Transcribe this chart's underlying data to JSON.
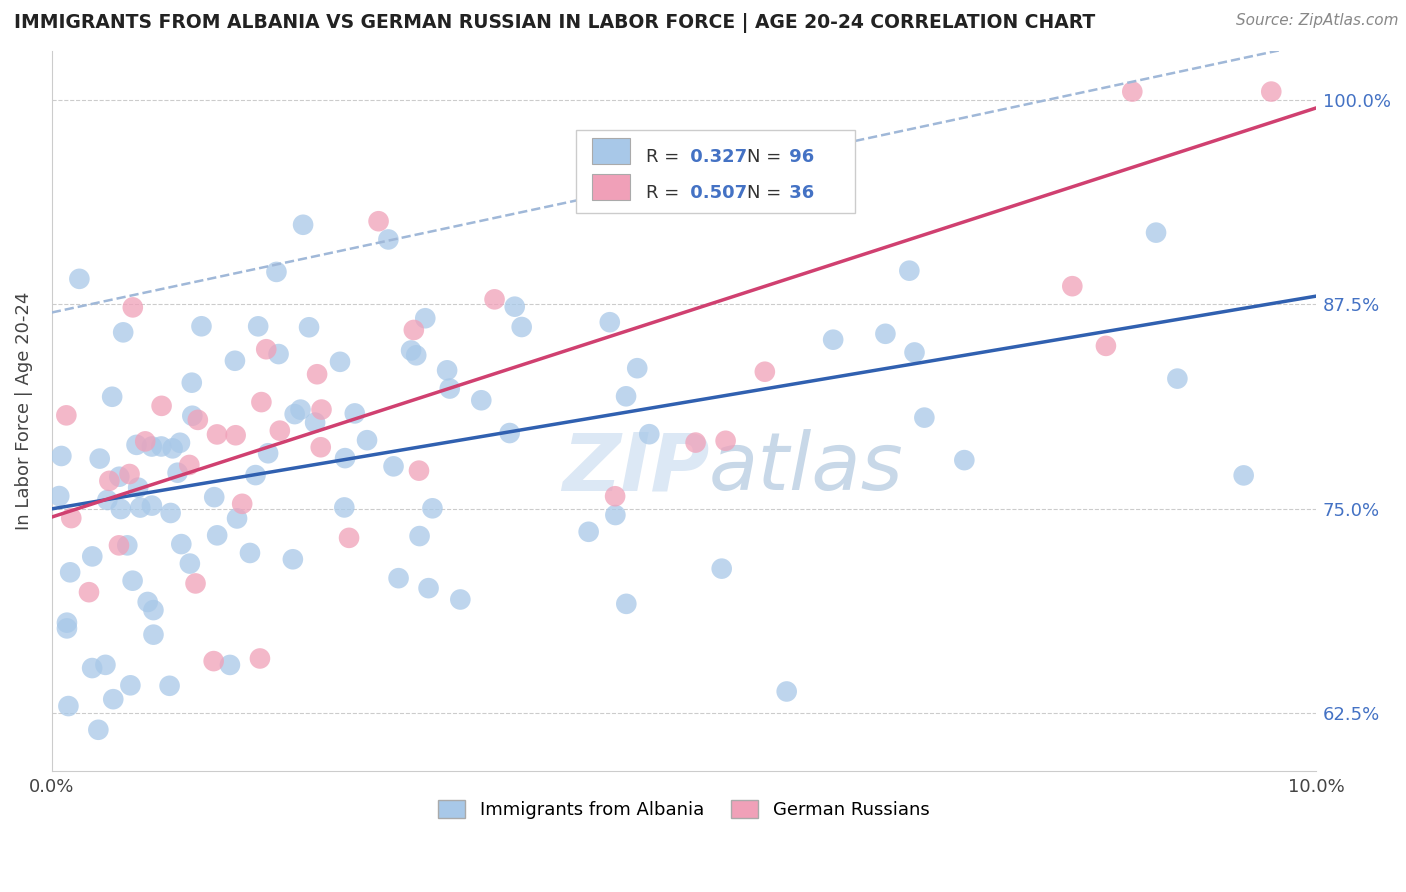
{
  "title": "IMMIGRANTS FROM ALBANIA VS GERMAN RUSSIAN IN LABOR FORCE | AGE 20-24 CORRELATION CHART",
  "source": "Source: ZipAtlas.com",
  "ylabel_label": "In Labor Force | Age 20-24",
  "legend_label1": "Immigrants from Albania",
  "legend_label2": "German Russians",
  "r1": 0.327,
  "n1": 96,
  "r2": 0.507,
  "n2": 36,
  "color_blue": "#a8c8e8",
  "color_pink": "#f0a0b8",
  "color_line_blue": "#3060b0",
  "color_line_pink": "#d04070",
  "color_line_dash": "#a0b8d8",
  "xmin": 0.0,
  "xmax": 10.0,
  "ymin": 59.0,
  "ymax": 103.0,
  "yticks": [
    62.5,
    75.0,
    87.5,
    100.0
  ],
  "ytick_labels": [
    "62.5%",
    "75.0%",
    "87.5%",
    "100.0%"
  ],
  "xticks": [
    0.0,
    10.0
  ],
  "xtick_labels": [
    "0.0%",
    "10.0%"
  ]
}
